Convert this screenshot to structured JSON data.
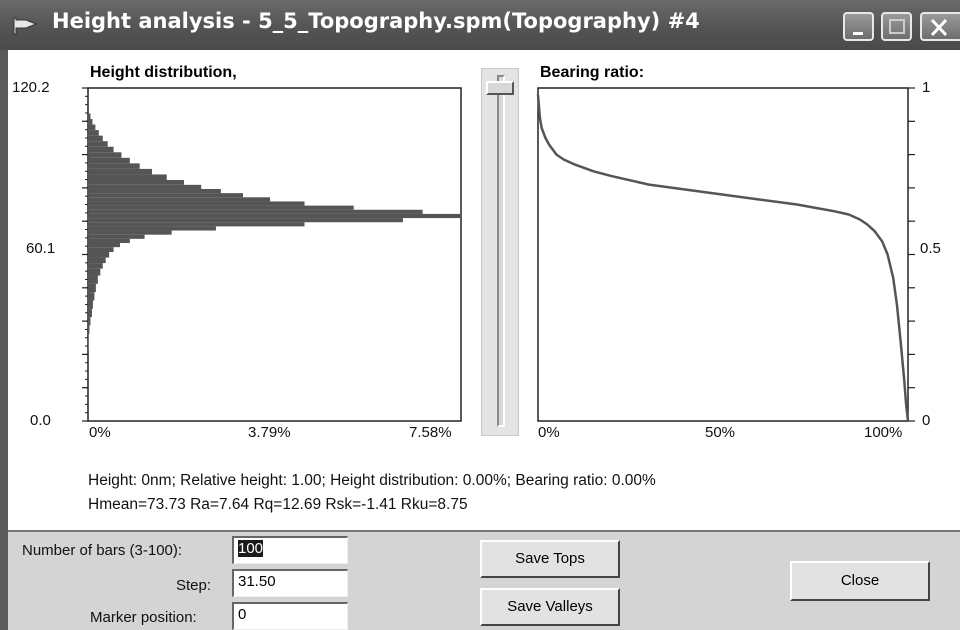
{
  "window": {
    "title": "Height analysis - 5_5_Topography.spm(Topography) #4",
    "controls": [
      "minimize",
      "maximize",
      "close"
    ]
  },
  "height_chart": {
    "title": "Height distribution,",
    "y_ticks": [
      "120.2",
      "60.1",
      "0.0"
    ],
    "x_ticks": [
      "0%",
      "3.79%",
      "7.58%"
    ]
  },
  "bearing_chart": {
    "title": "Bearing ratio:",
    "y_ticks": [
      "1",
      "0.5",
      "0"
    ],
    "x_ticks": [
      "0%",
      "50%",
      "100%"
    ]
  },
  "marker_slider": {
    "position": 0
  },
  "info": {
    "line1": "Height: 0nm;  Relative height: 1.00;  Height distribution: 0.00%;  Bearing ratio: 0.00%",
    "line2": "Hmean=73.73  Ra=7.64  Rq=12.69  Rsk=-1.41  Rku=8.75"
  },
  "form": {
    "bars_label": "Number of bars (3-100):",
    "bars_value": "100",
    "step_label": "Step:",
    "step_value": "31.50",
    "marker_label": "Marker position:",
    "marker_value": "0"
  },
  "buttons": {
    "save_tops": "Save Tops",
    "save_valleys": "Save Valleys",
    "close": "Close"
  },
  "chart_data": [
    {
      "type": "bar",
      "title": "Height distribution,",
      "orientation": "horizontal",
      "ylim": [
        0.0,
        120.2
      ],
      "xlim": [
        0,
        7.58
      ],
      "x_unit": "%",
      "y_ticks": [
        0.0,
        60.1,
        120.2
      ],
      "x_ticks": [
        "0%",
        "3.79%",
        "7.58%"
      ],
      "bins": [
        {
          "height": 27,
          "percent": 0.0
        },
        {
          "height": 30,
          "percent": 0.01
        },
        {
          "height": 33,
          "percent": 0.03
        },
        {
          "height": 36,
          "percent": 0.05
        },
        {
          "height": 39,
          "percent": 0.08
        },
        {
          "height": 42,
          "percent": 0.1
        },
        {
          "height": 45,
          "percent": 0.13
        },
        {
          "height": 48,
          "percent": 0.16
        },
        {
          "height": 51,
          "percent": 0.2
        },
        {
          "height": 54,
          "percent": 0.25
        },
        {
          "height": 56,
          "percent": 0.3
        },
        {
          "height": 58,
          "percent": 0.36
        },
        {
          "height": 60,
          "percent": 0.43
        },
        {
          "height": 62,
          "percent": 0.52
        },
        {
          "height": 63.5,
          "percent": 0.65
        },
        {
          "height": 65,
          "percent": 0.85
        },
        {
          "height": 66.5,
          "percent": 1.15
        },
        {
          "height": 68,
          "percent": 1.7
        },
        {
          "height": 69.5,
          "percent": 2.6
        },
        {
          "height": 71,
          "percent": 4.4
        },
        {
          "height": 72.5,
          "percent": 6.4
        },
        {
          "height": 74,
          "percent": 7.58
        },
        {
          "height": 75.5,
          "percent": 6.8
        },
        {
          "height": 77,
          "percent": 5.4
        },
        {
          "height": 78.5,
          "percent": 4.4
        },
        {
          "height": 80,
          "percent": 3.7
        },
        {
          "height": 81.5,
          "percent": 3.15
        },
        {
          "height": 83,
          "percent": 2.7
        },
        {
          "height": 84.5,
          "percent": 2.3
        },
        {
          "height": 86,
          "percent": 1.95
        },
        {
          "height": 88,
          "percent": 1.6
        },
        {
          "height": 90,
          "percent": 1.3
        },
        {
          "height": 92,
          "percent": 1.05
        },
        {
          "height": 94,
          "percent": 0.85
        },
        {
          "height": 96,
          "percent": 0.68
        },
        {
          "height": 98,
          "percent": 0.52
        },
        {
          "height": 100,
          "percent": 0.4
        },
        {
          "height": 102,
          "percent": 0.3
        },
        {
          "height": 104,
          "percent": 0.22
        },
        {
          "height": 106,
          "percent": 0.15
        },
        {
          "height": 108,
          "percent": 0.09
        },
        {
          "height": 110,
          "percent": 0.05
        },
        {
          "height": 112,
          "percent": 0.02
        }
      ],
      "color": "#555555"
    },
    {
      "type": "line",
      "title": "Bearing ratio:",
      "xlim": [
        0,
        100
      ],
      "ylim": [
        0,
        1
      ],
      "x_unit": "%",
      "y_ticks": [
        0,
        0.5,
        1
      ],
      "x_ticks": [
        "0%",
        "50%",
        "100%"
      ],
      "series": [
        {
          "x": [
            0,
            0.5,
            1,
            2,
            3,
            5,
            7,
            10,
            15,
            20,
            30,
            40,
            50,
            60,
            70,
            75,
            80,
            84,
            87,
            89,
            91,
            93,
            94.5,
            96,
            97,
            98,
            99,
            99.5,
            100
          ],
          "y": [
            0.98,
            0.91,
            0.88,
            0.85,
            0.83,
            0.8,
            0.785,
            0.77,
            0.75,
            0.735,
            0.71,
            0.695,
            0.68,
            0.665,
            0.65,
            0.64,
            0.63,
            0.62,
            0.605,
            0.59,
            0.57,
            0.54,
            0.5,
            0.43,
            0.35,
            0.24,
            0.12,
            0.05,
            0.0
          ],
          "color": "#555555"
        }
      ]
    }
  ]
}
